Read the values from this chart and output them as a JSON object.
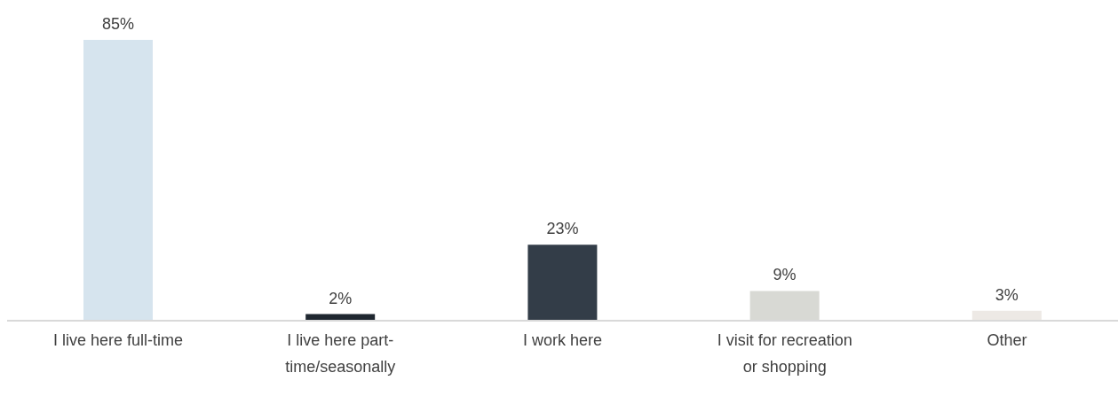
{
  "chart_data": {
    "type": "bar",
    "categories": [
      "I live here full-time",
      "I live here part-time/seasonally",
      "I work here",
      "I visit for recreation or shopping",
      "Other"
    ],
    "values": [
      85,
      2,
      23,
      9,
      3
    ],
    "value_labels": [
      "85%",
      "2%",
      "23%",
      "9%",
      "3%"
    ],
    "colors": [
      "#d6e4ee",
      "#1f2730",
      "#333d48",
      "#d8d9d4",
      "#ede9e5"
    ],
    "grid": false,
    "legend": false
  }
}
